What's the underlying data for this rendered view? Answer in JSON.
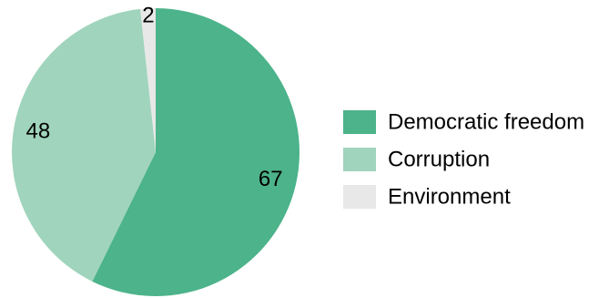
{
  "chart_data": {
    "type": "pie",
    "title": "",
    "legend_placement": "right",
    "slices": [
      {
        "name": "Democratic freedom",
        "value": 67,
        "label": "67",
        "color": "#4cb38a"
      },
      {
        "name": "Corruption",
        "value": 48,
        "label": "48",
        "color": "#a0d4bc"
      },
      {
        "name": "Environment",
        "value": 2,
        "label": "2",
        "color": "#e8e8e8"
      }
    ]
  }
}
